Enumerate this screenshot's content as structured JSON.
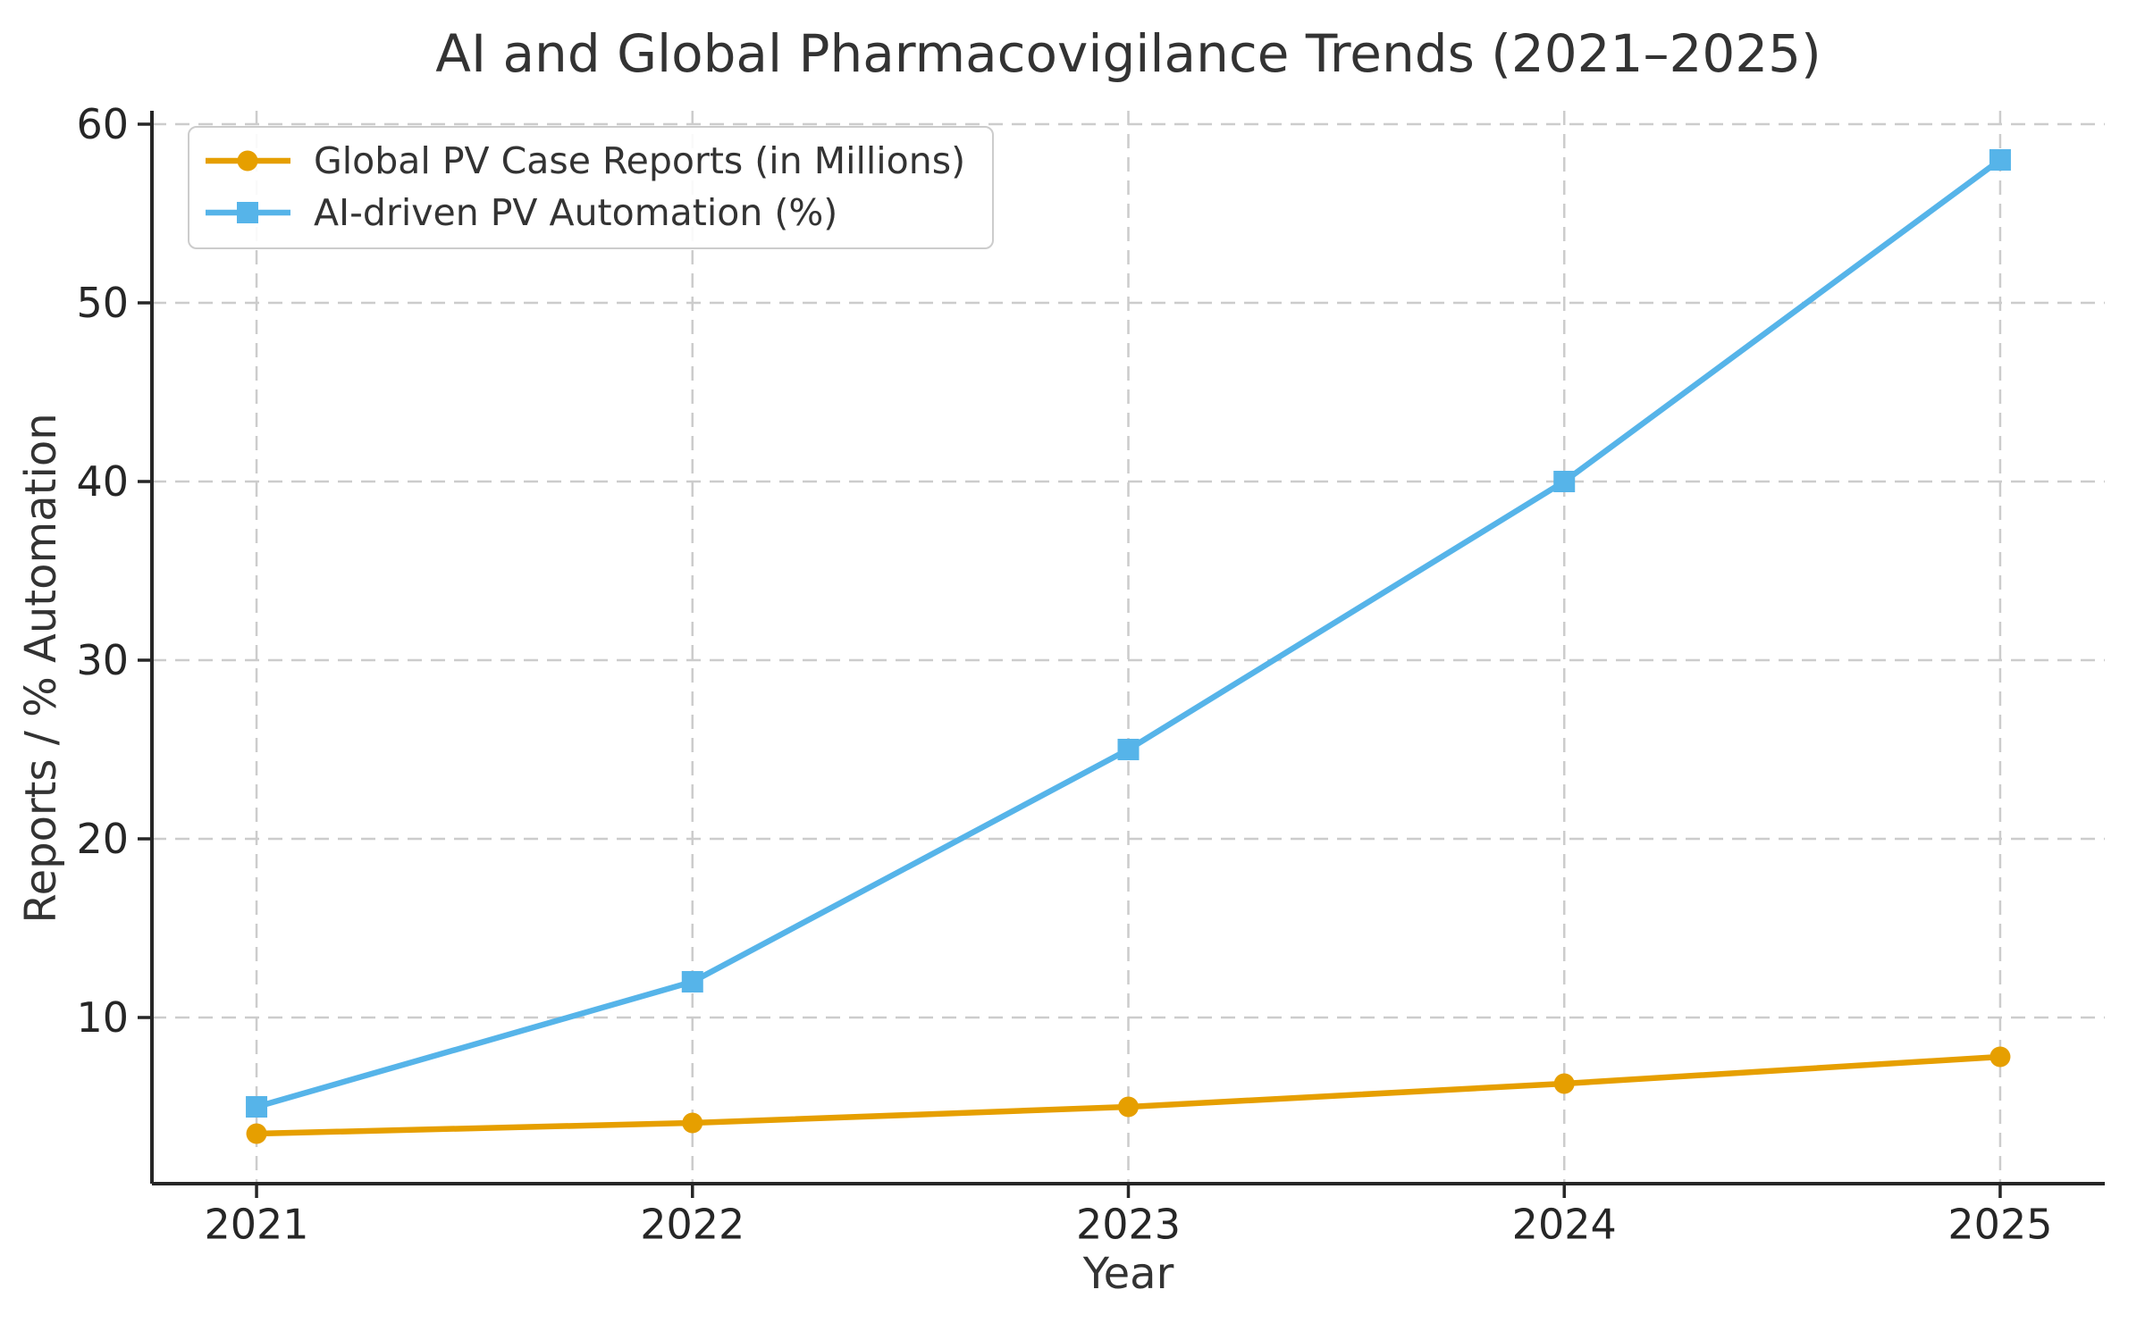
{
  "title": "AI and Global Pharmacovigilance Trends (2021–2025)",
  "chart_data": {
    "type": "line",
    "x": [
      2021,
      2022,
      2023,
      2024,
      2025
    ],
    "x_ticks": [
      "2021",
      "2022",
      "2023",
      "2024",
      "2025"
    ],
    "y_ticks": [
      "10",
      "20",
      "30",
      "40",
      "50",
      "60"
    ],
    "y_tick_values": [
      10,
      20,
      30,
      40,
      50,
      60
    ],
    "xlabel": "Year",
    "ylabel": "Reports / % Automation",
    "xlim": [
      2020.76,
      2025.24
    ],
    "ylim": [
      0.7,
      60.75
    ],
    "grid": true,
    "grid_style": "dashed",
    "legend_position": "upper left",
    "series": [
      {
        "name": "Global PV Case Reports (in Millions)",
        "color": "#E69F00",
        "marker": "circle",
        "values": [
          3.5,
          4.1,
          5.0,
          6.3,
          7.8
        ]
      },
      {
        "name": "AI-driven PV Automation (%)",
        "color": "#56B4E9",
        "marker": "square",
        "values": [
          5,
          12,
          25,
          40,
          58
        ]
      }
    ]
  },
  "colors": {
    "background": "#ffffff",
    "grid": "#cccccc",
    "spine": "#262626",
    "tick_text": "#262626",
    "text": "#333333",
    "legend_border": "#cccccc"
  }
}
